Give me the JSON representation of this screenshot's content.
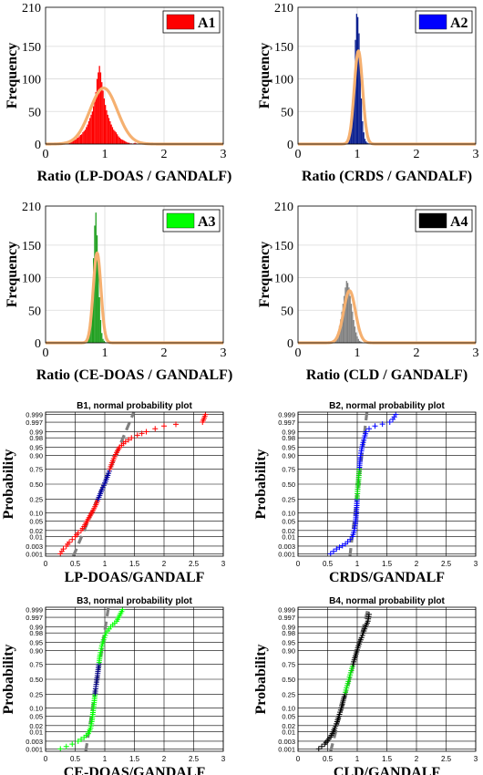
{
  "chart_data": [
    {
      "type": "histogram",
      "panel": "A1",
      "xlabel": "Ratio (LP-DOAS / GANDALF)",
      "ylabel": "Frequency",
      "xlim": [
        0,
        3
      ],
      "ylim": [
        0,
        210
      ],
      "xticks": [
        "0",
        "1",
        "2",
        "3"
      ],
      "yticks": [
        "0",
        "50",
        "100",
        "150",
        "210"
      ],
      "legend": {
        "label": "A1",
        "color": "#ff0000",
        "placement": "top-right"
      },
      "color": "#ff0000",
      "fit_color": "#f5b070",
      "fit": {
        "mean": 0.98,
        "sd": 0.23,
        "peak": 86
      },
      "bins": {
        "start": 0.3,
        "width": 0.02,
        "counts": [
          1,
          0,
          1,
          1,
          2,
          3,
          3,
          4,
          5,
          6,
          7,
          9,
          10,
          12,
          14,
          15,
          18,
          20,
          22,
          26,
          30,
          35,
          40,
          45,
          50,
          58,
          65,
          80,
          100,
          110,
          120,
          110,
          95,
          82,
          70,
          60,
          52,
          45,
          40,
          35,
          30,
          26,
          22,
          20,
          18,
          15,
          12,
          10,
          8,
          7,
          6,
          5,
          4,
          3,
          2,
          2,
          1,
          1,
          0,
          1,
          0,
          1,
          0,
          0,
          1,
          0,
          0,
          0,
          1,
          0,
          0,
          1
        ]
      },
      "outliers": [
        1.5,
        1.7,
        2.05,
        2.25,
        2.6
      ]
    },
    {
      "type": "histogram",
      "panel": "A2",
      "xlabel": "Ratio (CRDS / GANDALF)",
      "ylabel": "Frequency",
      "xlim": [
        0,
        3
      ],
      "ylim": [
        0,
        210
      ],
      "xticks": [
        "0",
        "1",
        "2",
        "3"
      ],
      "yticks": [
        "0",
        "50",
        "100",
        "150",
        "210"
      ],
      "legend": {
        "label": "A2",
        "color": "#0000ff",
        "placement": "top-right"
      },
      "color": "#0a1f8f",
      "fit_color": "#f5b070",
      "fit": {
        "mean": 1.02,
        "sd": 0.07,
        "peak": 143
      },
      "bins": {
        "start": 0.8,
        "width": 0.02,
        "counts": [
          2,
          4,
          6,
          10,
          18,
          30,
          55,
          100,
          160,
          200,
          195,
          170,
          120,
          70,
          35,
          18,
          8,
          4,
          2,
          1,
          1
        ]
      },
      "outliers": [
        0.45,
        0.6,
        1.35,
        1.55,
        1.65
      ]
    },
    {
      "type": "histogram",
      "panel": "A3",
      "xlabel": "Ratio (CE-DOAS / GANDALF)",
      "ylabel": "Frequency",
      "xlim": [
        0,
        3
      ],
      "ylim": [
        0,
        210
      ],
      "xticks": [
        "0",
        "1",
        "2",
        "3"
      ],
      "yticks": [
        "0",
        "50",
        "100",
        "150",
        "210"
      ],
      "legend": {
        "label": "A3",
        "color": "#00ff00",
        "placement": "top-right"
      },
      "color": "#1f9f1f",
      "fit_color": "#f5b070",
      "fit": {
        "mean": 0.87,
        "sd": 0.065,
        "peak": 138
      },
      "bins": {
        "start": 0.66,
        "width": 0.02,
        "counts": [
          2,
          4,
          7,
          12,
          25,
          45,
          80,
          130,
          180,
          200,
          165,
          120,
          70,
          35,
          15,
          6,
          3,
          1
        ]
      },
      "outliers": [
        0.25,
        0.45,
        1.1,
        1.2,
        1.3
      ]
    },
    {
      "type": "histogram",
      "panel": "A4",
      "xlabel": "Ratio (CLD / GANDALF)",
      "ylabel": "Frequency",
      "xlim": [
        0,
        3
      ],
      "ylim": [
        0,
        210
      ],
      "xticks": [
        "0",
        "1",
        "2",
        "3"
      ],
      "yticks": [
        "0",
        "50",
        "100",
        "150",
        "210"
      ],
      "legend": {
        "label": "A4",
        "color": "#000000",
        "placement": "top-right"
      },
      "color": "#808080",
      "fit_color": "#f5b070",
      "fit": {
        "mean": 0.87,
        "sd": 0.1,
        "peak": 80
      },
      "bins": {
        "start": 0.55,
        "width": 0.02,
        "counts": [
          1,
          2,
          3,
          5,
          8,
          12,
          18,
          26,
          36,
          48,
          60,
          72,
          85,
          95,
          92,
          85,
          72,
          60,
          48,
          35,
          25,
          16,
          10,
          6,
          3,
          2,
          1
        ]
      },
      "outliers": []
    },
    {
      "type": "scatter",
      "panel": "B1",
      "title": "B1, normal probability plot",
      "xlabel": "LP-DOAS/GANDALF",
      "ylabel": "Probability",
      "xlim": [
        0,
        3
      ],
      "xticks": [
        "0",
        "0.5",
        "1",
        "1.5",
        "2",
        "2.5",
        "3"
      ],
      "yticks": [
        "0.001",
        "0.003",
        "0.01",
        "0.02",
        "0.05",
        "0.10",
        "0.25",
        "0.50",
        "0.75",
        "0.90",
        "0.95",
        "0.98",
        "0.99",
        "0.997",
        "0.999"
      ],
      "point_color": "#ff0000",
      "core_color": "#0000a0",
      "ref_line": {
        "mean": 0.98,
        "sd": 0.16
      },
      "ref_color": "#808080",
      "points": [
        [
          0.25,
          0.001
        ],
        [
          0.3,
          0.002
        ],
        [
          0.35,
          0.003
        ],
        [
          0.4,
          0.005
        ],
        [
          0.45,
          0.007
        ],
        [
          0.5,
          0.01
        ],
        [
          0.55,
          0.015
        ],
        [
          0.6,
          0.02
        ],
        [
          0.65,
          0.03
        ],
        [
          0.7,
          0.05
        ],
        [
          0.75,
          0.08
        ],
        [
          0.8,
          0.12
        ],
        [
          0.85,
          0.18
        ],
        [
          0.9,
          0.28
        ],
        [
          0.95,
          0.4
        ],
        [
          1.0,
          0.52
        ],
        [
          1.05,
          0.65
        ],
        [
          1.1,
          0.78
        ],
        [
          1.15,
          0.87
        ],
        [
          1.2,
          0.92
        ],
        [
          1.25,
          0.95
        ],
        [
          1.35,
          0.97
        ],
        [
          1.45,
          0.98
        ],
        [
          1.55,
          0.985
        ],
        [
          1.7,
          0.99
        ],
        [
          1.85,
          0.993
        ],
        [
          2.0,
          0.995
        ],
        [
          2.2,
          0.996
        ],
        [
          2.65,
          0.997
        ],
        [
          2.7,
          0.999
        ]
      ]
    },
    {
      "type": "scatter",
      "panel": "B2",
      "title": "B2, normal probability plot",
      "xlabel": "CRDS/GANDALF",
      "ylabel": "Probability",
      "xlim": [
        0,
        3
      ],
      "xticks": [
        "0",
        "0.5",
        "1",
        "1.5",
        "2",
        "2.5",
        "3"
      ],
      "yticks": [
        "0.001",
        "0.003",
        "0.01",
        "0.02",
        "0.05",
        "0.10",
        "0.25",
        "0.50",
        "0.75",
        "0.90",
        "0.95",
        "0.98",
        "0.99",
        "0.997",
        "0.999"
      ],
      "point_color": "#0000ff",
      "core_color": "#00e000",
      "ref_line": {
        "mean": 1.02,
        "sd": 0.045
      },
      "ref_color": "#808080",
      "points": [
        [
          0.55,
          0.001
        ],
        [
          0.65,
          0.002
        ],
        [
          0.8,
          0.004
        ],
        [
          0.88,
          0.007
        ],
        [
          0.92,
          0.01
        ],
        [
          0.95,
          0.02
        ],
        [
          0.97,
          0.04
        ],
        [
          0.98,
          0.08
        ],
        [
          0.99,
          0.15
        ],
        [
          1.0,
          0.3
        ],
        [
          1.01,
          0.45
        ],
        [
          1.02,
          0.55
        ],
        [
          1.03,
          0.68
        ],
        [
          1.04,
          0.8
        ],
        [
          1.05,
          0.88
        ],
        [
          1.07,
          0.93
        ],
        [
          1.09,
          0.96
        ],
        [
          1.12,
          0.98
        ],
        [
          1.15,
          0.99
        ],
        [
          1.2,
          0.993
        ],
        [
          1.3,
          0.995
        ],
        [
          1.55,
          0.997
        ],
        [
          1.6,
          0.998
        ],
        [
          1.65,
          0.999
        ]
      ]
    },
    {
      "type": "scatter",
      "panel": "B3",
      "title": "B3, normal probability plot",
      "xlabel": "CE-DOAS/GANDALF",
      "ylabel": "Probability",
      "xlim": [
        0,
        3
      ],
      "xticks": [
        "0",
        "0.5",
        "1",
        "1.5",
        "2",
        "2.5",
        "3"
      ],
      "yticks": [
        "0.001",
        "0.003",
        "0.01",
        "0.02",
        "0.05",
        "0.10",
        "0.25",
        "0.50",
        "0.75",
        "0.90",
        "0.95",
        "0.98",
        "0.99",
        "0.997",
        "0.999"
      ],
      "point_color": "#00ff00",
      "core_color": "#000080",
      "ref_line": {
        "mean": 0.87,
        "sd": 0.06
      },
      "ref_color": "#808080",
      "points": [
        [
          0.25,
          0.001
        ],
        [
          0.45,
          0.002
        ],
        [
          0.55,
          0.003
        ],
        [
          0.65,
          0.005
        ],
        [
          0.72,
          0.008
        ],
        [
          0.76,
          0.015
        ],
        [
          0.78,
          0.03
        ],
        [
          0.8,
          0.07
        ],
        [
          0.82,
          0.15
        ],
        [
          0.84,
          0.3
        ],
        [
          0.86,
          0.45
        ],
        [
          0.88,
          0.6
        ],
        [
          0.9,
          0.75
        ],
        [
          0.92,
          0.86
        ],
        [
          0.95,
          0.93
        ],
        [
          0.98,
          0.96
        ],
        [
          1.02,
          0.98
        ],
        [
          1.1,
          0.99
        ],
        [
          1.2,
          0.995
        ],
        [
          1.3,
          0.999
        ]
      ]
    },
    {
      "type": "scatter",
      "panel": "B4",
      "title": "B4, normal probability plot",
      "xlabel": "CLD/GANDALF",
      "ylabel": "Probability",
      "xlim": [
        0,
        3
      ],
      "xticks": [
        "0",
        "0.5",
        "1",
        "1.5",
        "2",
        "2.5",
        "3"
      ],
      "yticks": [
        "0.001",
        "0.003",
        "0.01",
        "0.02",
        "0.05",
        "0.10",
        "0.25",
        "0.50",
        "0.75",
        "0.90",
        "0.95",
        "0.98",
        "0.99",
        "0.997",
        "0.999"
      ],
      "point_color": "#000000",
      "core_color": "#00e000",
      "ref_line": {
        "mean": 0.87,
        "sd": 0.1
      },
      "ref_color": "#808080",
      "points": [
        [
          0.35,
          0.001
        ],
        [
          0.45,
          0.002
        ],
        [
          0.52,
          0.004
        ],
        [
          0.58,
          0.008
        ],
        [
          0.62,
          0.015
        ],
        [
          0.66,
          0.03
        ],
        [
          0.7,
          0.06
        ],
        [
          0.74,
          0.12
        ],
        [
          0.78,
          0.22
        ],
        [
          0.82,
          0.35
        ],
        [
          0.86,
          0.5
        ],
        [
          0.9,
          0.65
        ],
        [
          0.94,
          0.78
        ],
        [
          0.98,
          0.87
        ],
        [
          1.02,
          0.93
        ],
        [
          1.06,
          0.96
        ],
        [
          1.1,
          0.98
        ],
        [
          1.14,
          0.99
        ],
        [
          1.18,
          0.995
        ],
        [
          1.2,
          0.998
        ]
      ]
    }
  ]
}
